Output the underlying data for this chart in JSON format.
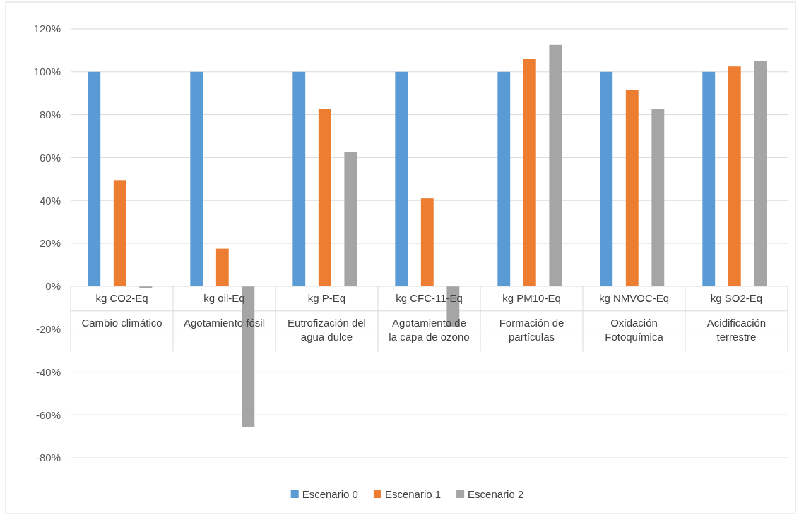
{
  "chart_data": {
    "type": "bar",
    "categories": [
      "kg CO2-Eq\nCambio climático",
      "kg oil-Eq\nAgotamiento fósil",
      "kg P-Eq\nEutrofización del agua dulce",
      "kg CFC-11-Eq\nAgotamiento de la capa de ozono",
      "kg PM10-Eq\nFormación de partículas",
      "kg NMVOC-Eq\nOxidación Fotoquímica",
      "kg SO2-Eq\nAcidificación terrestre"
    ],
    "series": [
      {
        "name": "Escenario 0",
        "color": "#5b9bd5",
        "values": [
          100,
          100,
          100,
          100,
          100,
          100,
          100
        ]
      },
      {
        "name": "Escenario 1",
        "color": "#ed7d31",
        "values": [
          49.5,
          17.5,
          82.5,
          41,
          106,
          91.5,
          102.5
        ]
      },
      {
        "name": "Escenario 2",
        "color": "#a5a5a5",
        "values": [
          -1,
          -65.5,
          62.5,
          -19,
          112.5,
          82.5,
          105
        ]
      }
    ],
    "ylim": [
      -80,
      120
    ],
    "yticks": [
      {
        "value": -80,
        "label": "-80%"
      },
      {
        "value": -60,
        "label": "-60%"
      },
      {
        "value": -40,
        "label": "-40%"
      },
      {
        "value": -20,
        "label": "-20%"
      },
      {
        "value": 0,
        "label": "0%"
      },
      {
        "value": 20,
        "label": "20%"
      },
      {
        "value": 40,
        "label": "40%"
      },
      {
        "value": 60,
        "label": "60%"
      },
      {
        "value": 80,
        "label": "80%"
      },
      {
        "value": 100,
        "label": "100%"
      },
      {
        "value": 120,
        "label": "120%"
      }
    ],
    "grid": "y",
    "legend": "bottom"
  }
}
